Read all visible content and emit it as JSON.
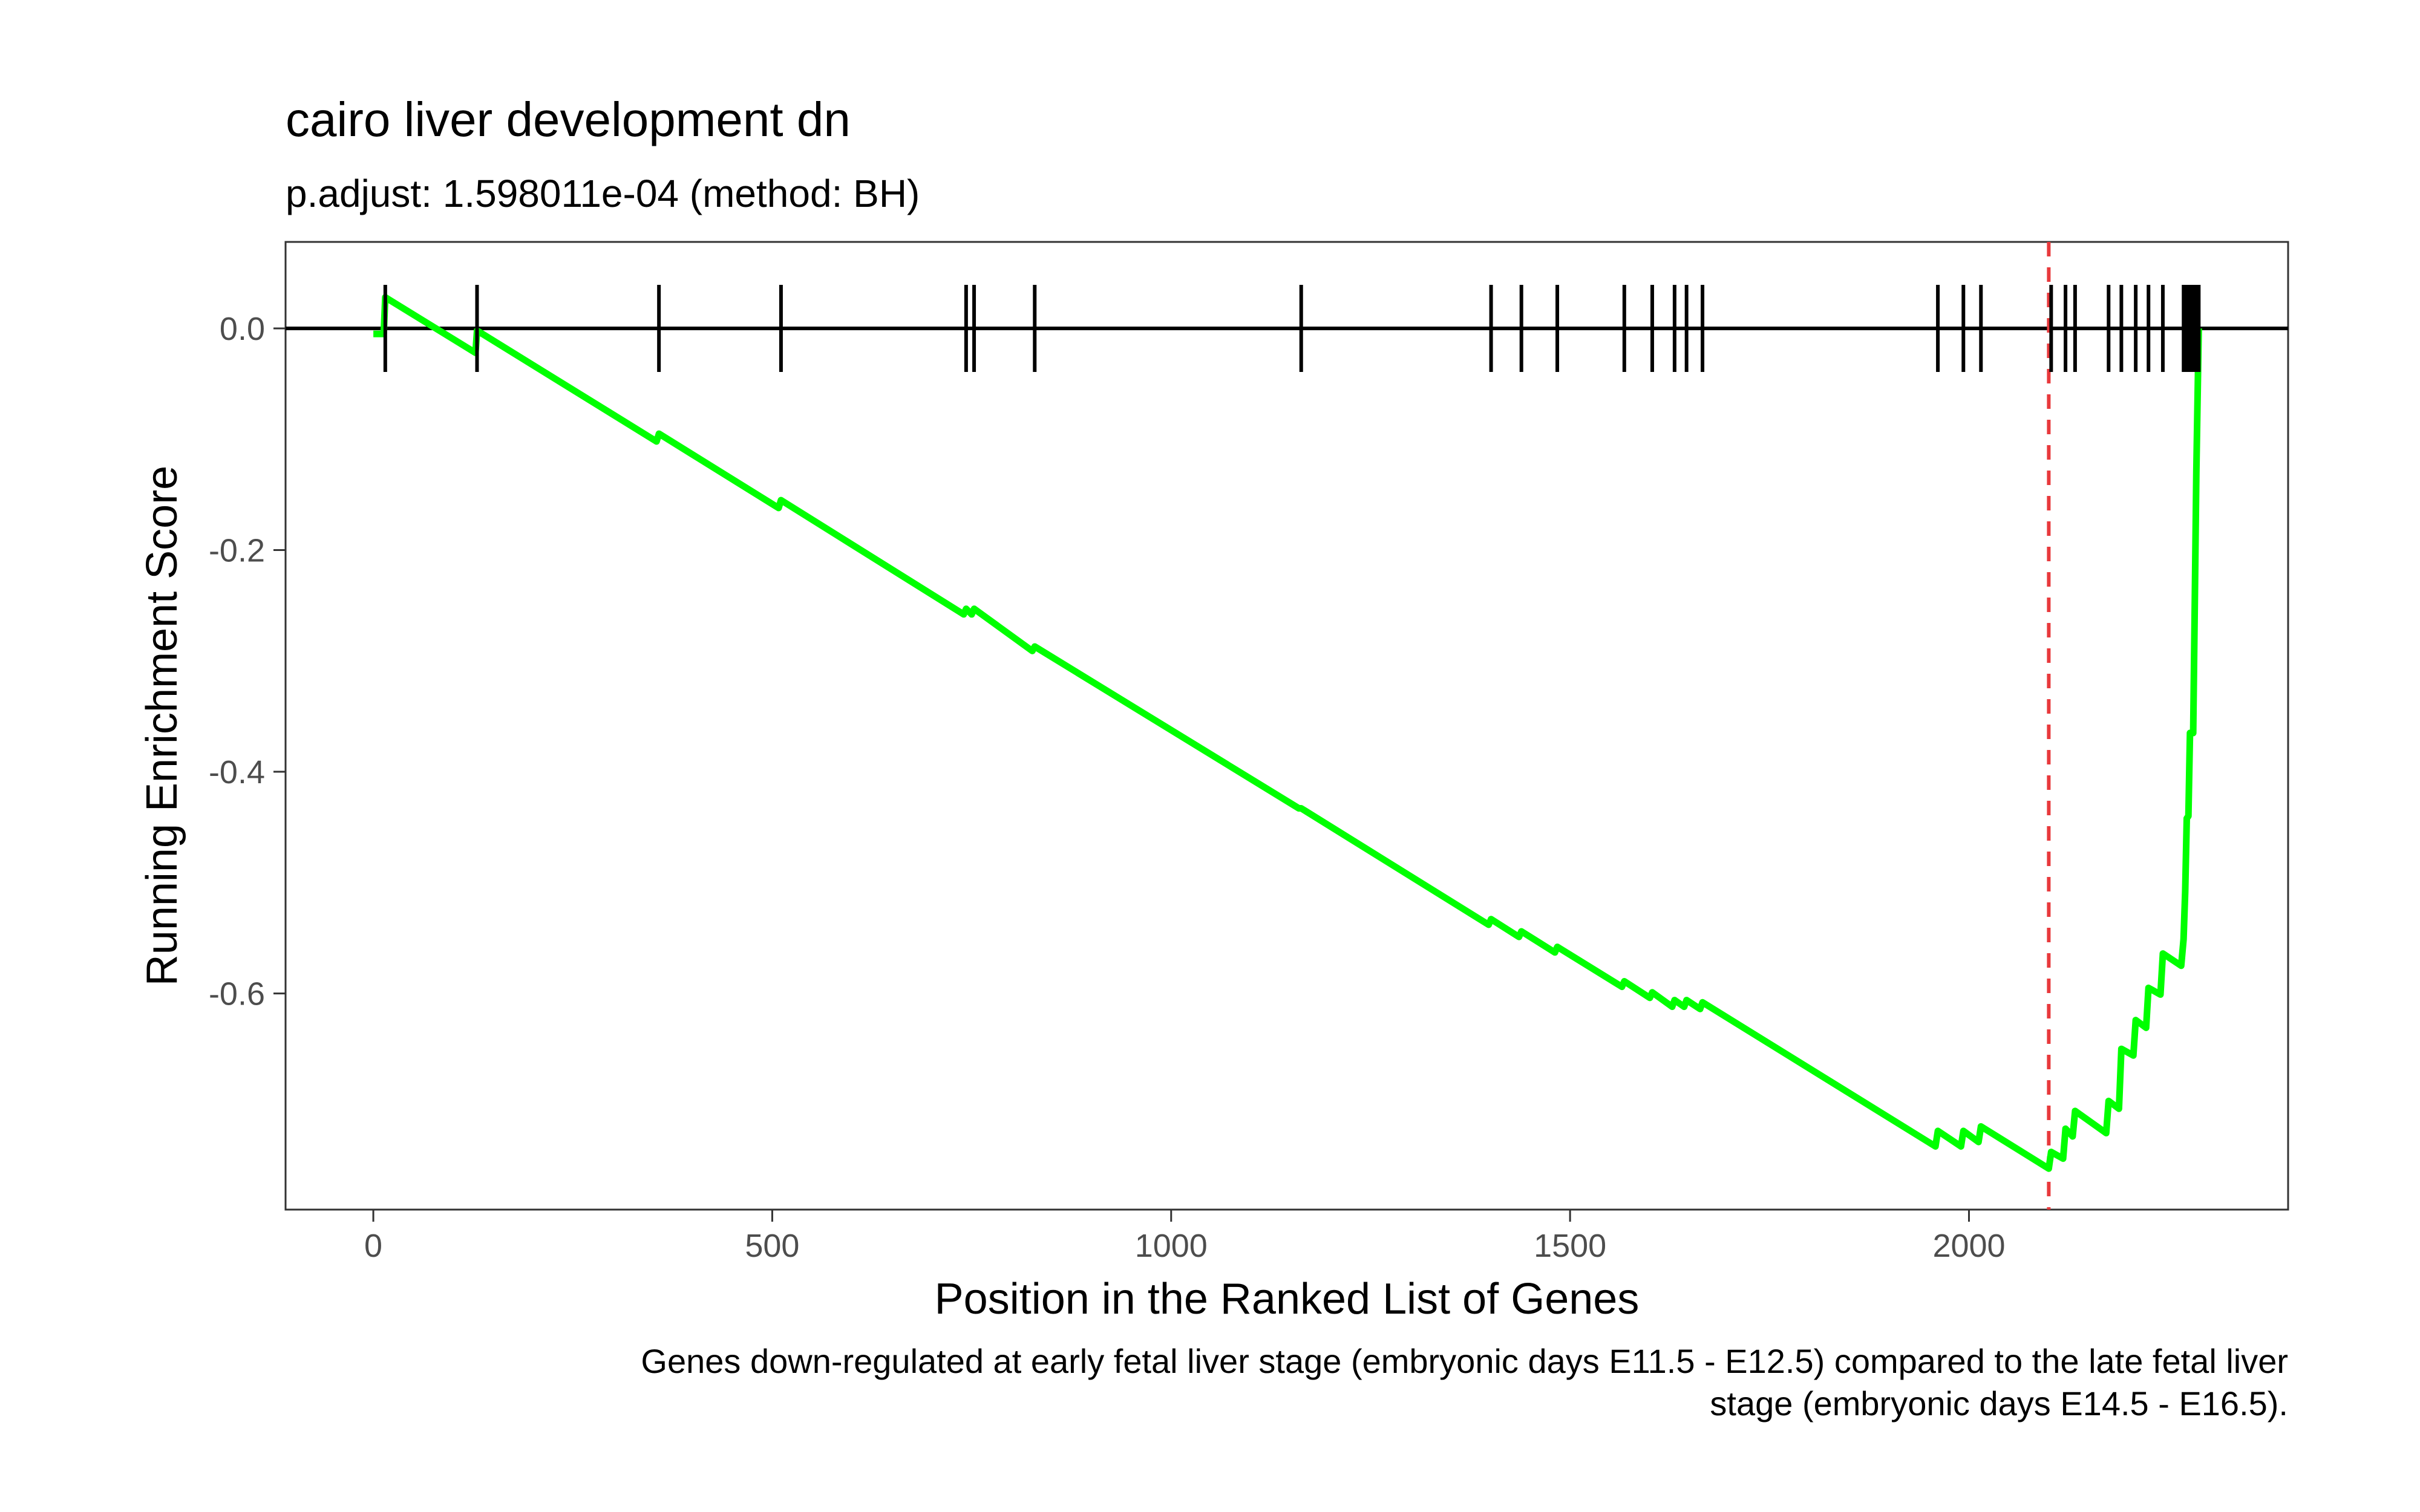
{
  "chart_data": {
    "type": "line",
    "title": "cairo liver development dn",
    "subtitle": "p.adjust: 1.598011e-04 (method: BH)",
    "xlabel": "Position in the Ranked List of Genes",
    "ylabel": "Running Enrichment Score",
    "caption_lines": [
      "Genes down-regulated at early fetal liver stage (embryonic days E11.5 - E12.5) compared to the late fetal liver",
      "stage (embryonic days E14.5 - E16.5)."
    ],
    "xlim": [
      -110,
      2400
    ],
    "ylim": [
      -0.795,
      0.078
    ],
    "x_ticks": [
      0,
      500,
      1000,
      1500,
      2000
    ],
    "x_tick_labels": [
      "0",
      "500",
      "1000",
      "1500",
      "2000"
    ],
    "y_ticks": [
      0.0,
      -0.2,
      -0.4,
      -0.6
    ],
    "y_tick_labels": [
      "0.0",
      "-0.2",
      "-0.4",
      "-0.6"
    ],
    "grid": false,
    "line_color": "#00ff00",
    "zero_line_color": "#000000",
    "max_deviation_line": {
      "x": 2100,
      "color": "#e8393c",
      "style": "dashed"
    },
    "series": [
      {
        "values_xy": [
          [
            0,
            -0.005
          ],
          [
            13,
            -0.005
          ],
          [
            15,
            0.028
          ],
          [
            128,
            -0.022
          ],
          [
            130,
            -0.002
          ],
          [
            355,
            -0.102
          ],
          [
            358,
            -0.095
          ],
          [
            508,
            -0.162
          ],
          [
            511,
            -0.155
          ],
          [
            740,
            -0.258
          ],
          [
            743,
            -0.253
          ],
          [
            750,
            -0.258
          ],
          [
            753,
            -0.253
          ],
          [
            826,
            -0.291
          ],
          [
            829,
            -0.287
          ],
          [
            1160,
            -0.433
          ],
          [
            1163,
            -0.433
          ],
          [
            1398,
            -0.538
          ],
          [
            1401,
            -0.533
          ],
          [
            1436,
            -0.549
          ],
          [
            1439,
            -0.544
          ],
          [
            1481,
            -0.563
          ],
          [
            1484,
            -0.558
          ],
          [
            1565,
            -0.594
          ],
          [
            1568,
            -0.589
          ],
          [
            1600,
            -0.604
          ],
          [
            1603,
            -0.599
          ],
          [
            1628,
            -0.612
          ],
          [
            1631,
            -0.606
          ],
          [
            1643,
            -0.612
          ],
          [
            1646,
            -0.606
          ],
          [
            1663,
            -0.614
          ],
          [
            1666,
            -0.608
          ],
          [
            1958,
            -0.738
          ],
          [
            1961,
            -0.724
          ],
          [
            1990,
            -0.738
          ],
          [
            1993,
            -0.724
          ],
          [
            2012,
            -0.734
          ],
          [
            2015,
            -0.72
          ],
          [
            2100,
            -0.758
          ],
          [
            2103,
            -0.743
          ],
          [
            2118,
            -0.749
          ],
          [
            2121,
            -0.722
          ],
          [
            2130,
            -0.729
          ],
          [
            2133,
            -0.706
          ],
          [
            2172,
            -0.726
          ],
          [
            2175,
            -0.697
          ],
          [
            2188,
            -0.704
          ],
          [
            2191,
            -0.65
          ],
          [
            2206,
            -0.656
          ],
          [
            2209,
            -0.624
          ],
          [
            2222,
            -0.631
          ],
          [
            2225,
            -0.595
          ],
          [
            2240,
            -0.601
          ],
          [
            2243,
            -0.564
          ],
          [
            2266,
            -0.575
          ],
          [
            2269,
            -0.551
          ],
          [
            2271,
            -0.508
          ],
          [
            2273,
            -0.442
          ],
          [
            2275,
            -0.44
          ],
          [
            2277,
            -0.365
          ],
          [
            2281,
            -0.365
          ],
          [
            2283,
            -0.25
          ],
          [
            2285,
            -0.13
          ],
          [
            2288,
            0.0
          ]
        ]
      }
    ],
    "hits": [
      15,
      130,
      358,
      511,
      743,
      753,
      829,
      1163,
      1401,
      1439,
      1484,
      1568,
      1603,
      1631,
      1646,
      1666,
      1961,
      1993,
      2015,
      2103,
      2121,
      2133,
      2175,
      2191,
      2209,
      2225,
      2243,
      2269,
      2271,
      2273,
      2275,
      2277,
      2279,
      2281,
      2283,
      2285,
      2288
    ]
  }
}
